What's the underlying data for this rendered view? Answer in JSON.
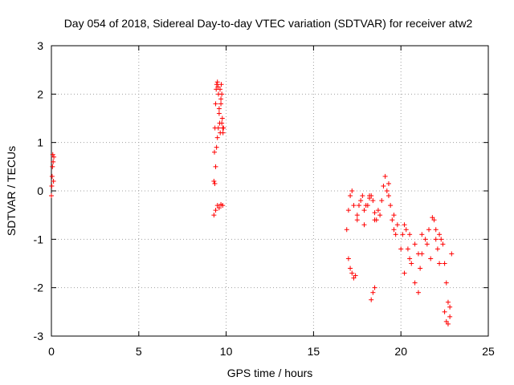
{
  "chart_data": {
    "type": "scatter",
    "title": "Day 054 of 2018, Sidereal Day-to-day VTEC variation (SDTVAR) for receiver atw2",
    "xlabel": "GPS time / hours",
    "ylabel": "SDTVAR / TECUs",
    "xlim": [
      0,
      25
    ],
    "ylim": [
      -3,
      3
    ],
    "xticks": [
      0,
      5,
      10,
      15,
      20,
      25
    ],
    "yticks": [
      -3,
      -2,
      -1,
      0,
      1,
      2,
      3
    ],
    "grid": true,
    "marker": "+",
    "color": "#ff0000",
    "series": [
      {
        "name": "SDTVAR",
        "x": [
          0.0,
          0.02,
          0.04,
          0.06,
          0.08,
          0.1,
          0.12,
          0.14,
          9.3,
          9.33,
          9.36,
          9.4,
          9.43,
          9.46,
          9.5,
          9.53,
          9.56,
          9.6,
          9.63,
          9.66,
          9.7,
          9.72,
          9.75,
          9.78,
          9.8,
          9.82,
          9.85,
          9.35,
          9.4,
          9.45,
          9.5,
          9.55,
          9.6,
          9.65,
          9.7,
          9.75,
          9.3,
          9.4,
          9.5,
          9.6,
          9.7,
          9.8,
          17.0,
          17.1,
          17.2,
          17.3,
          17.4,
          16.9,
          17.0,
          17.1,
          17.2,
          17.3,
          17.5,
          17.7,
          17.9,
          18.1,
          18.3,
          18.5,
          18.7,
          17.5,
          17.8,
          18.0,
          18.2,
          18.4,
          18.6,
          18.8,
          19.0,
          19.1,
          19.2,
          19.3,
          19.4,
          19.5,
          19.6,
          19.7,
          19.8,
          18.3,
          18.4,
          18.5,
          17.6,
          17.9,
          18.2,
          18.5,
          18.9,
          19.3,
          19.6,
          20.0,
          20.1,
          20.2,
          20.3,
          20.4,
          20.5,
          20.6,
          20.8,
          21.0,
          21.1,
          21.2,
          21.4,
          21.6,
          21.8,
          21.9,
          22.0,
          22.1,
          22.2,
          20.2,
          20.5,
          20.8,
          21.0,
          21.2,
          21.5,
          21.7,
          22.0,
          22.2,
          22.3,
          22.4,
          22.5,
          22.6,
          22.7,
          22.8,
          22.9,
          22.5,
          22.6,
          22.7,
          22.8
        ],
        "y": [
          -0.1,
          0.1,
          0.3,
          0.5,
          0.75,
          0.6,
          0.2,
          0.7,
          0.2,
          0.8,
          1.3,
          1.8,
          2.1,
          2.2,
          2.25,
          2.15,
          2.0,
          1.7,
          1.4,
          1.2,
          1.8,
          2.2,
          2.0,
          1.5,
          1.3,
          1.2,
          1.3,
          0.15,
          0.5,
          0.9,
          1.1,
          1.3,
          1.6,
          2.1,
          1.9,
          1.4,
          -0.5,
          -0.4,
          -0.3,
          -0.35,
          -0.28,
          -0.3,
          -1.4,
          -1.6,
          -1.7,
          -1.8,
          -1.75,
          -0.8,
          -0.4,
          -0.1,
          0.0,
          -0.3,
          -0.5,
          -0.2,
          -0.4,
          -0.3,
          -0.1,
          -0.6,
          -0.4,
          -0.6,
          -0.1,
          -0.3,
          -0.1,
          -0.2,
          -0.6,
          -0.5,
          0.1,
          0.3,
          0.0,
          -0.1,
          -0.3,
          -0.6,
          -0.8,
          -0.9,
          -0.7,
          -2.25,
          -2.1,
          -2.0,
          -0.3,
          -0.7,
          -0.15,
          -0.45,
          -0.2,
          0.15,
          -0.5,
          -1.2,
          -0.9,
          -0.7,
          -0.8,
          -1.2,
          -0.9,
          -1.5,
          -1.9,
          -2.1,
          -1.6,
          -1.3,
          -1.0,
          -0.8,
          -0.55,
          -0.6,
          -0.8,
          -1.2,
          -1.5,
          -1.7,
          -1.4,
          -1.1,
          -1.3,
          -0.9,
          -1.1,
          -1.4,
          -1.0,
          -0.9,
          -1.0,
          -1.1,
          -1.5,
          -1.9,
          -2.3,
          -2.6,
          -1.3,
          -2.5,
          -2.7,
          -2.75,
          -2.4
        ]
      }
    ]
  }
}
